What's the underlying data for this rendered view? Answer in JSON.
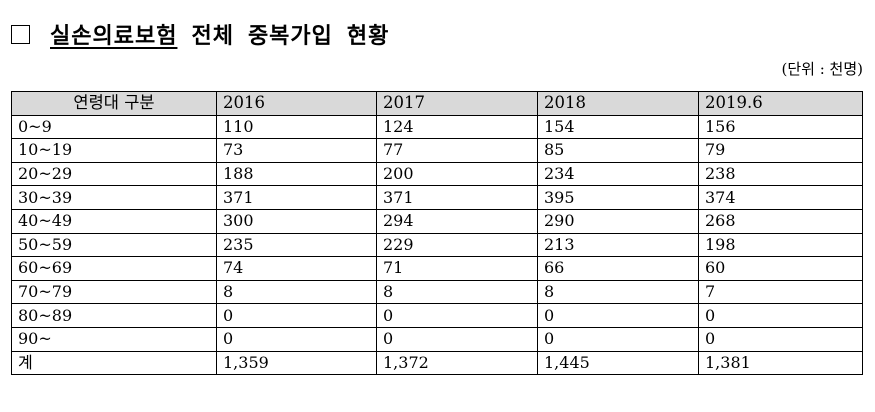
{
  "title": {
    "part1": "실손의료보험",
    "part2": "전체",
    "part3": "중복가입",
    "part4": "현황"
  },
  "unit": "(단위 : 천명)",
  "table": {
    "headers": [
      "연령대 구분",
      "2016",
      "2017",
      "2018",
      "2019.6"
    ],
    "rows": [
      [
        "0~9",
        "110",
        "124",
        "154",
        "156"
      ],
      [
        "10~19",
        "73",
        "77",
        "85",
        "79"
      ],
      [
        "20~29",
        "188",
        "200",
        "234",
        "238"
      ],
      [
        "30~39",
        "371",
        "371",
        "395",
        "374"
      ],
      [
        "40~49",
        "300",
        "294",
        "290",
        "268"
      ],
      [
        "50~59",
        "235",
        "229",
        "213",
        "198"
      ],
      [
        "60~69",
        "74",
        "71",
        "66",
        "60"
      ],
      [
        "70~79",
        "8",
        "8",
        "8",
        "7"
      ],
      [
        "80~89",
        "0",
        "0",
        "0",
        "0"
      ],
      [
        "90~",
        "0",
        "0",
        "0",
        "0"
      ],
      [
        "계",
        "1,359",
        "1,372",
        "1,445",
        "1,381"
      ]
    ]
  }
}
